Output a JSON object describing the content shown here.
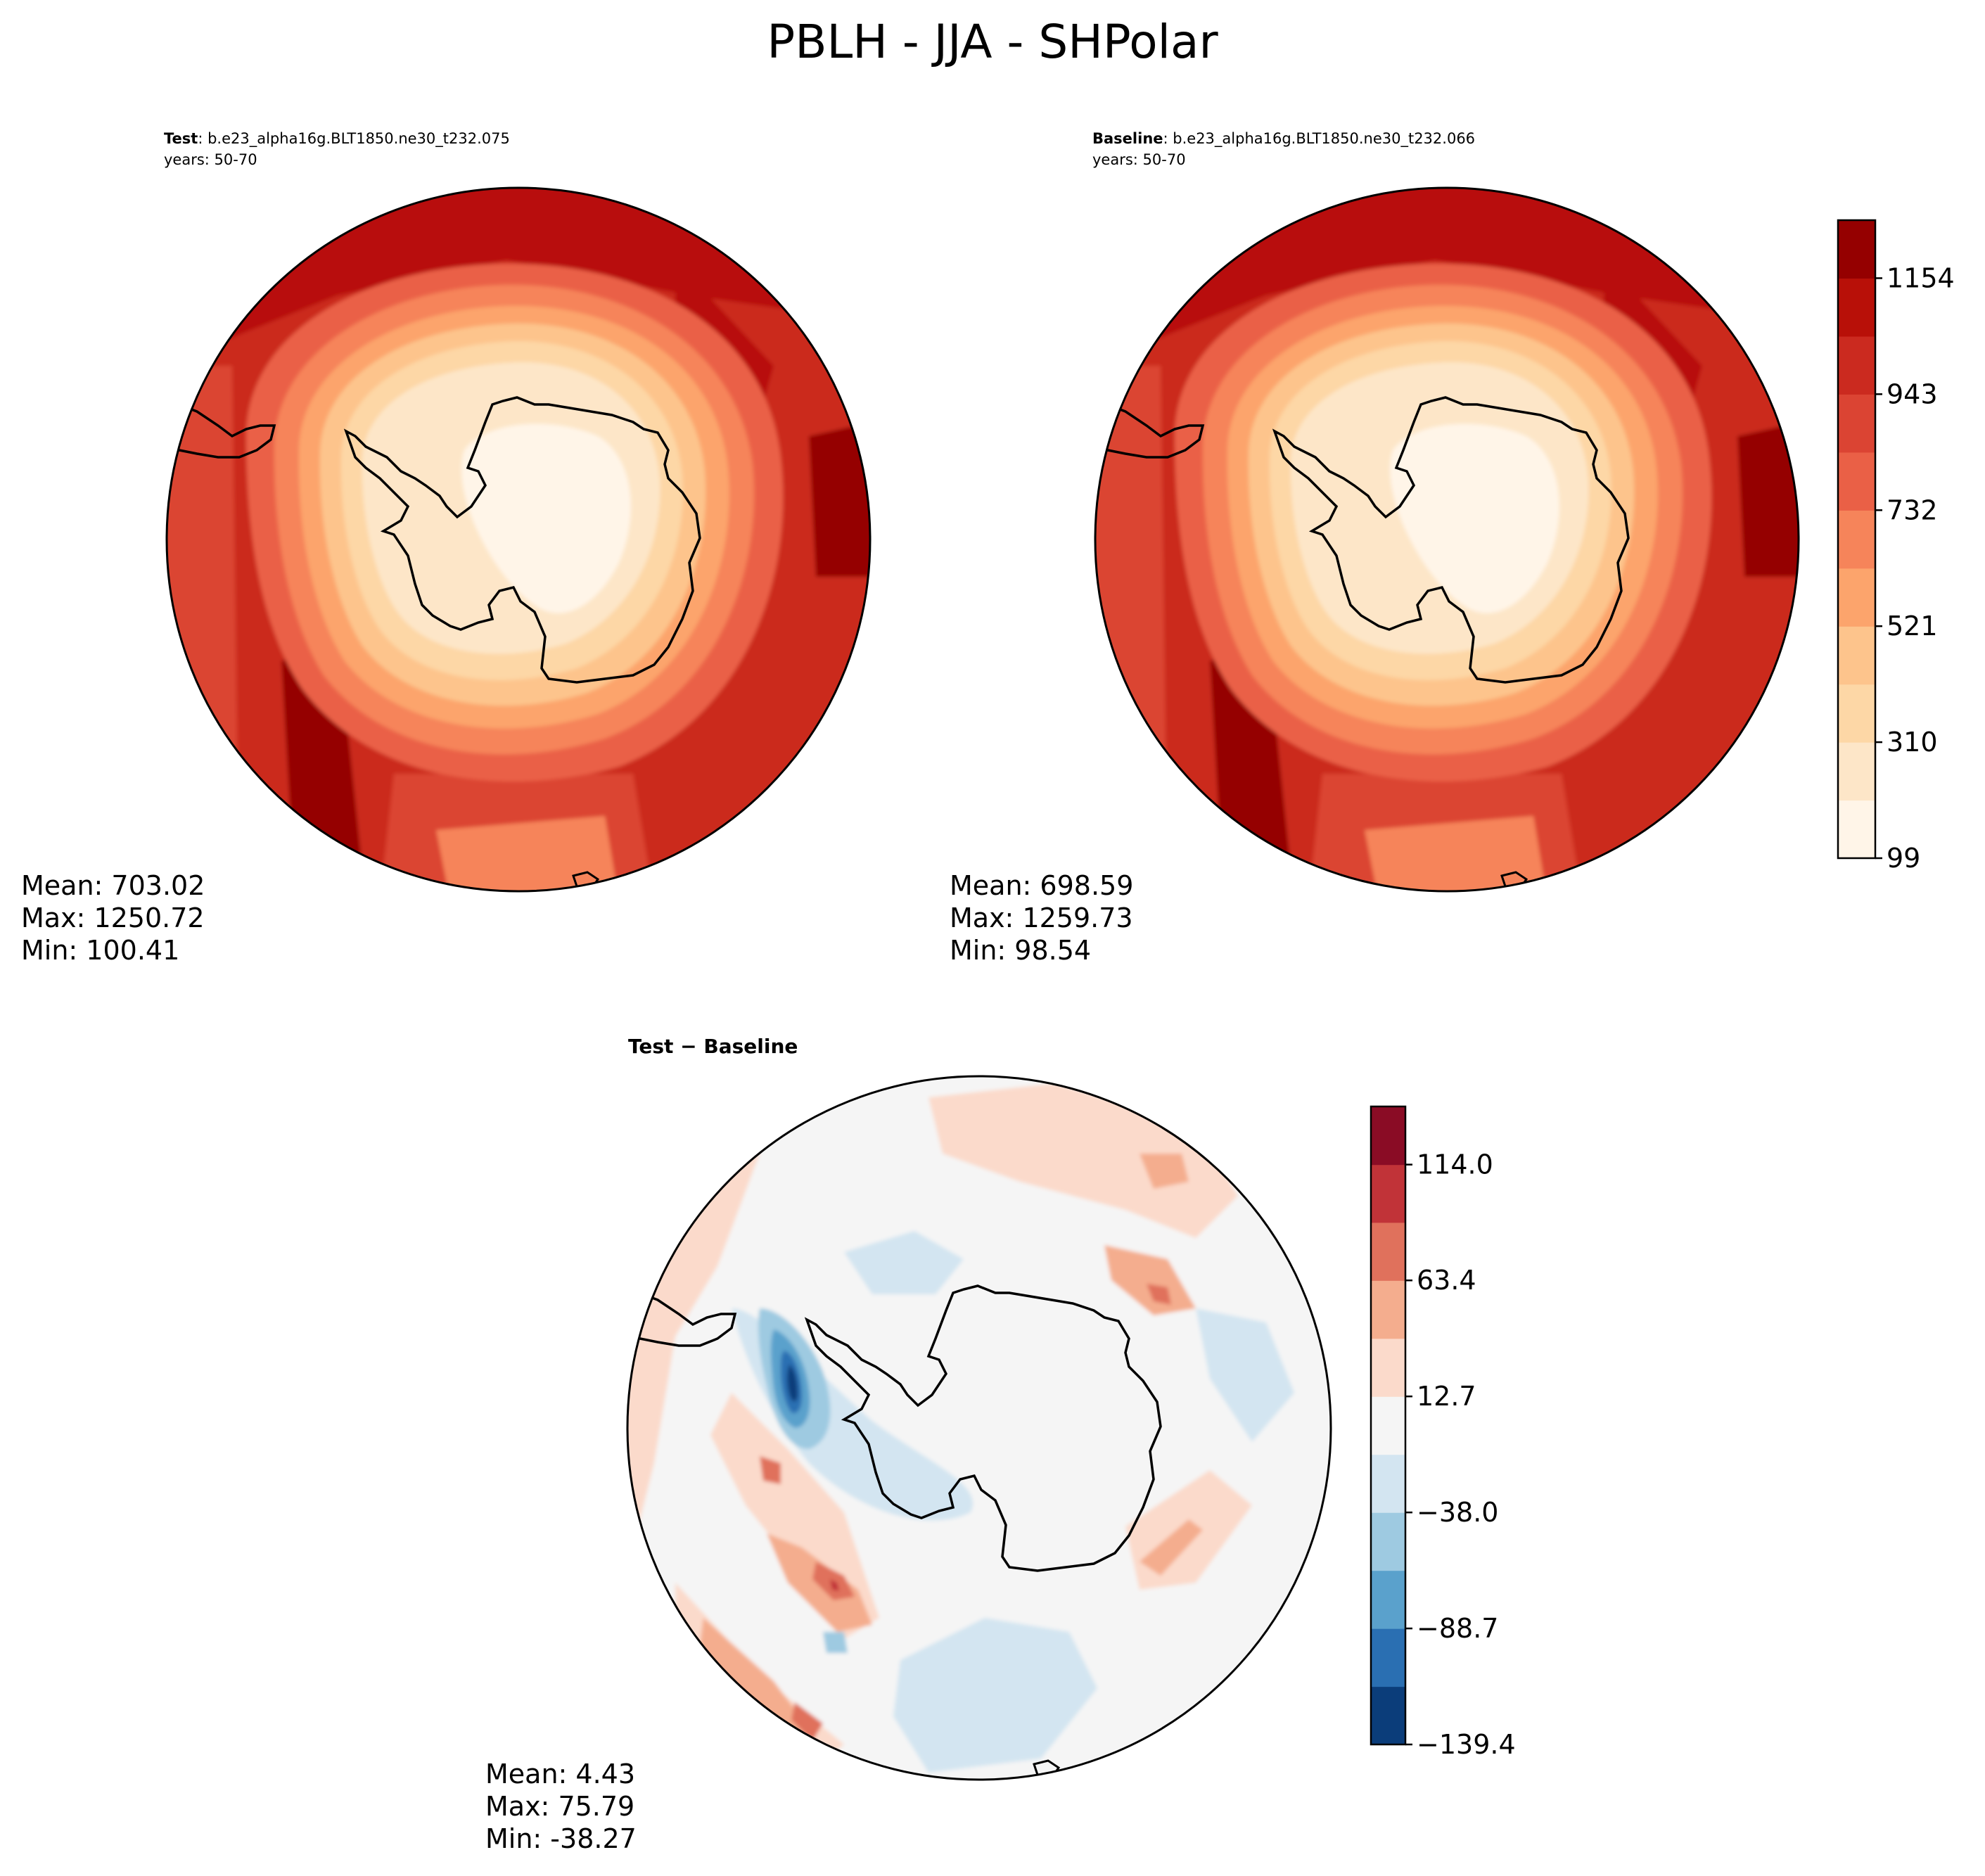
{
  "figure": {
    "suptitle": "PBLH - JJA - SHPolar"
  },
  "chart_data": [
    {
      "type": "heatmap",
      "projection": "south-polar-stereographic",
      "panel": "test",
      "title_bold": "Test",
      "title_rest": ": b.e23_alpha16g.BLT1850.ne30_t232.075",
      "subtitle": "years: 50-70",
      "stats": {
        "mean": "Mean: 703.02",
        "max": "Max: 1250.72",
        "min": "Min: 100.41"
      },
      "colormap": "OrRd",
      "value_range": [
        99,
        1260
      ]
    },
    {
      "type": "heatmap",
      "projection": "south-polar-stereographic",
      "panel": "baseline",
      "title_bold": "Baseline",
      "title_rest": ": b.e23_alpha16g.BLT1850.ne30_t232.066",
      "subtitle": "years: 50-70",
      "stats": {
        "mean": "Mean: 698.59",
        "max": "Max: 1259.73",
        "min": "Min: 98.54"
      },
      "colormap": "OrRd",
      "value_range": [
        99,
        1260
      ],
      "colorbar": {
        "levels": [
          99,
          204.5,
          310,
          415.5,
          521,
          626.5,
          732,
          837.5,
          943,
          1048.5,
          1154,
          1259.5
        ],
        "tick_labels": [
          "99",
          "310",
          "521",
          "732",
          "943",
          "1154"
        ],
        "colors": [
          "#fff5e8",
          "#fde6c8",
          "#fdd7a6",
          "#fdc48c",
          "#fca46c",
          "#f6845a",
          "#ea6046",
          "#db4433",
          "#cb2a1f",
          "#b81008",
          "#950000"
        ]
      }
    },
    {
      "type": "heatmap",
      "projection": "south-polar-stereographic",
      "panel": "difference",
      "title": "Test − Baseline",
      "stats": {
        "mean": "Mean:  4.43",
        "max": "Max: 75.79",
        "min": "Min: -38.27"
      },
      "colormap": "RdBu_r",
      "value_range": [
        -139.4,
        139.4
      ],
      "colorbar": {
        "levels": [
          -139.4,
          -114.05,
          -88.7,
          -63.35,
          -38.0,
          -12.65,
          12.7,
          38.05,
          63.4,
          88.75,
          114.0,
          139.4
        ],
        "tick_labels": [
          "−139.4",
          "−88.7",
          "−38.0",
          "12.7",
          "63.4",
          "114.0"
        ],
        "colors": [
          "#0b3d7a",
          "#2a6fb2",
          "#5aa1cc",
          "#9ecae1",
          "#d3e5f1",
          "#f5f5f5",
          "#fbdacb",
          "#f4ad8e",
          "#e0715c",
          "#c13338",
          "#8a0c25"
        ]
      }
    }
  ]
}
